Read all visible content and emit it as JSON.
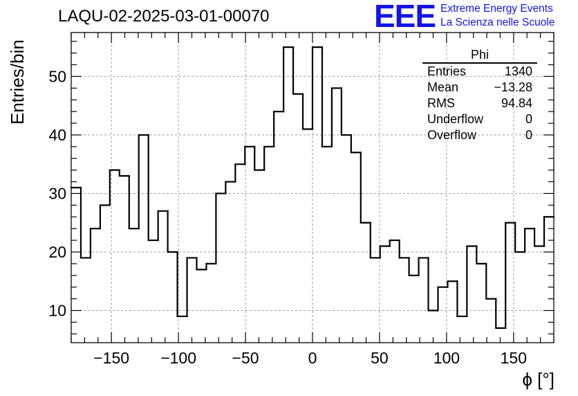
{
  "header": {
    "title": "LAQU-02-2025-03-01-00070",
    "logo_mark": "EEE",
    "logo_line1": "Extreme Energy Events",
    "logo_line2": "La Scienza nelle Scuole"
  },
  "stats": {
    "title": "Phi",
    "rows": [
      {
        "label": "Entries",
        "value": "1340"
      },
      {
        "label": "Mean",
        "value": "−13.28"
      },
      {
        "label": "RMS",
        "value": "94.84"
      },
      {
        "label": "Underflow",
        "value": "0"
      },
      {
        "label": "Overflow",
        "value": "0"
      }
    ]
  },
  "chart_data": {
    "type": "histogram",
    "title": "LAQU-02-2025-03-01-00070",
    "xlabel": "ϕ [°]",
    "ylabel": "Entries/bin",
    "xlim": [
      -180,
      180
    ],
    "ylim": [
      4.5,
      57.5
    ],
    "bin_width": 7.2,
    "bin_low_edges": [
      -180,
      -172.8,
      -165.6,
      -158.4,
      -151.2,
      -144,
      -136.8,
      -129.6,
      -122.4,
      -115.2,
      -108,
      -100.8,
      -93.6,
      -86.4,
      -79.2,
      -72,
      -64.8,
      -57.6,
      -50.4,
      -43.2,
      -36,
      -28.8,
      -21.6,
      -14.4,
      -7.2,
      0,
      7.2,
      14.4,
      21.6,
      28.8,
      36,
      43.2,
      50.4,
      57.6,
      64.8,
      72,
      79.2,
      86.4,
      93.6,
      100.8,
      108,
      115.2,
      122.4,
      129.6,
      136.8,
      144,
      151.2,
      158.4,
      165.6,
      172.8
    ],
    "values": [
      31,
      19,
      24,
      28,
      34,
      33,
      24,
      40,
      22,
      27,
      20,
      9,
      19,
      17,
      18,
      30,
      32,
      35,
      38,
      34,
      38,
      44,
      55,
      47,
      41,
      55,
      38,
      48,
      40,
      37,
      25,
      19,
      21,
      22,
      19,
      16,
      19,
      10,
      14,
      15,
      9,
      21,
      18,
      12,
      7,
      25,
      20,
      24,
      21,
      26
    ],
    "x_ticks": [
      -150,
      -100,
      -50,
      0,
      50,
      100,
      150
    ],
    "x_tick_labels": [
      "−150",
      "−100",
      "−50",
      "0",
      "50",
      "100",
      "150"
    ],
    "y_ticks": [
      10,
      20,
      30,
      40,
      50
    ],
    "y_tick_labels": [
      "10",
      "20",
      "30",
      "40",
      "50"
    ],
    "grid": true,
    "line_color": "#000000",
    "grid_color": "#9a9a9a",
    "logo_color": "#1414e6"
  }
}
